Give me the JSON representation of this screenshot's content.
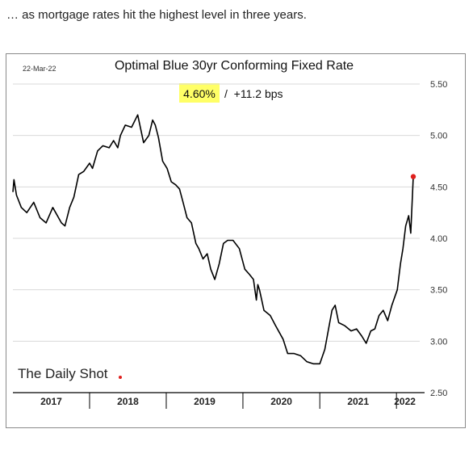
{
  "caption": "… as mortgage rates hit the highest level in three years.",
  "chart_data": {
    "type": "line",
    "title": "Optimal Blue 30yr Conforming Fixed Rate",
    "date_label": "22-Mar-22",
    "latest_value_label": "4.60%",
    "change_label": "/  +11.2 bps",
    "source_logo": "The Daily Shot",
    "x_axis_labels": [
      "2017",
      "2018",
      "2019",
      "2020",
      "2021",
      "2022"
    ],
    "y_tick_labels": [
      "5.50",
      "5.00",
      "4.50",
      "4.00",
      "3.50",
      "3.00",
      "2.50"
    ],
    "ylim": [
      2.5,
      5.5
    ],
    "xlim": [
      "2017-01-01",
      "2022-03-22"
    ],
    "grid": "horizontal",
    "line_color": "#000000",
    "marker_color": "#e0201e",
    "highlight_color": "#ffff66",
    "series": [
      {
        "x": [
          "2017-01-01",
          "2017-01-06",
          "2017-01-18",
          "2017-02-10",
          "2017-03-08",
          "2017-04-10",
          "2017-05-10",
          "2017-06-08",
          "2017-07-10",
          "2017-08-20",
          "2017-09-06",
          "2017-09-28",
          "2017-10-18",
          "2017-11-10",
          "2017-12-04",
          "2018-01-01",
          "2018-01-15",
          "2018-02-08",
          "2018-03-05",
          "2018-04-04",
          "2018-04-25",
          "2018-05-15",
          "2018-05-28",
          "2018-06-20",
          "2018-07-20",
          "2018-08-18",
          "2018-09-15",
          "2018-10-10",
          "2018-10-28",
          "2018-11-10",
          "2018-11-25",
          "2018-12-15",
          "2019-01-05",
          "2019-01-25",
          "2019-02-15",
          "2019-03-05",
          "2019-03-22",
          "2019-04-10",
          "2019-05-01",
          "2019-05-22",
          "2019-06-05",
          "2019-06-25",
          "2019-07-15",
          "2019-08-01",
          "2019-08-20",
          "2019-09-10",
          "2019-09-30",
          "2019-10-20",
          "2019-11-15",
          "2019-12-15",
          "2020-01-10",
          "2020-02-01",
          "2020-02-20",
          "2020-03-05",
          "2020-03-12",
          "2020-03-20",
          "2020-04-10",
          "2020-05-10",
          "2020-06-05",
          "2020-07-10",
          "2020-08-01",
          "2020-09-01",
          "2020-10-01",
          "2020-11-01",
          "2020-12-01",
          "2021-01-01",
          "2021-01-25",
          "2021-02-10",
          "2021-02-28",
          "2021-03-15",
          "2021-04-01",
          "2021-04-30",
          "2021-05-30",
          "2021-06-25",
          "2021-07-20",
          "2021-08-10",
          "2021-09-01",
          "2021-09-20",
          "2021-10-10",
          "2021-10-30",
          "2021-11-20",
          "2021-12-10",
          "2022-01-05",
          "2022-01-20",
          "2022-02-01",
          "2022-02-14",
          "2022-02-28",
          "2022-03-10",
          "2022-03-22"
        ],
        "y": [
          4.45,
          4.57,
          4.42,
          4.3,
          4.25,
          4.35,
          4.2,
          4.15,
          4.3,
          4.15,
          4.12,
          4.3,
          4.4,
          4.62,
          4.65,
          4.73,
          4.68,
          4.85,
          4.9,
          4.88,
          4.95,
          4.88,
          5.0,
          5.1,
          5.08,
          5.2,
          4.93,
          5.0,
          5.15,
          5.1,
          4.98,
          4.75,
          4.68,
          4.55,
          4.52,
          4.48,
          4.35,
          4.2,
          4.15,
          3.95,
          3.9,
          3.8,
          3.85,
          3.7,
          3.6,
          3.75,
          3.95,
          3.98,
          3.98,
          3.9,
          3.7,
          3.65,
          3.6,
          3.4,
          3.55,
          3.5,
          3.3,
          3.25,
          3.15,
          3.02,
          2.88,
          2.88,
          2.86,
          2.8,
          2.78,
          2.78,
          2.92,
          3.1,
          3.3,
          3.35,
          3.18,
          3.15,
          3.1,
          3.12,
          3.05,
          2.98,
          3.1,
          3.12,
          3.25,
          3.3,
          3.2,
          3.35,
          3.5,
          3.75,
          3.9,
          4.12,
          4.22,
          4.05,
          4.6
        ]
      }
    ]
  }
}
